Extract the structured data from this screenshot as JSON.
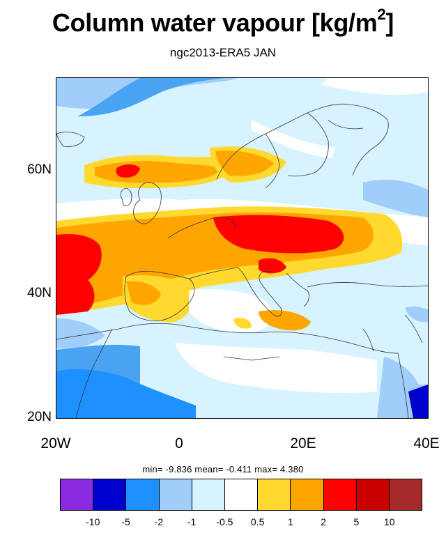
{
  "title": "Column water vapour [kg/m",
  "title_sup": "2",
  "title_tail": "]",
  "subtitle": "ngc2013-ERA5 JAN",
  "x_ticks": [
    "20W",
    "0",
    "20E",
    "40E"
  ],
  "y_ticks": [
    "60N",
    "40N",
    "20N"
  ],
  "stats": {
    "min_label": "min=",
    "min_value": "-9.836",
    "mean_label": "mean=",
    "mean_value": "-0.411",
    "max_label": "max=",
    "max_value": "4.380"
  },
  "colorbar": {
    "labels": [
      "-10",
      "-5",
      "-2",
      "-1",
      "-0.5",
      "0.5",
      "1",
      "2",
      "5",
      "10"
    ],
    "colors": [
      "#8a2be2",
      "#0000cd",
      "#1e90ff",
      "#a0cdfa",
      "#d7f3ff",
      "#ffffff",
      "#ffd92f",
      "#ffa500",
      "#ff0000",
      "#c80000",
      "#a52a2a"
    ]
  }
}
